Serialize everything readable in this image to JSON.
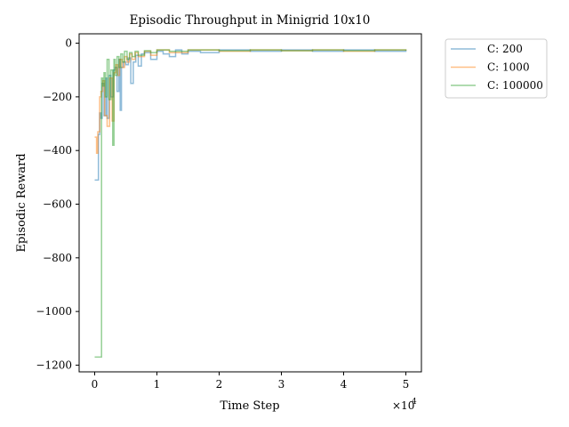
{
  "chart_data": {
    "type": "line",
    "title": "Episodic Throughput in Minigrid 10x10",
    "xlabel": "Time Step",
    "ylabel": "Episodic Reward",
    "x_multiplier_label": "×10",
    "x_multiplier_exp": "4",
    "xlim": [
      -2500,
      52500
    ],
    "ylim": [
      -1225,
      35
    ],
    "xticks": [
      0,
      10000,
      20000,
      30000,
      40000,
      50000
    ],
    "xtick_labels": [
      "0",
      "1",
      "2",
      "3",
      "4",
      "5"
    ],
    "yticks": [
      0,
      -200,
      -400,
      -600,
      -800,
      -1000,
      -1200
    ],
    "ytick_labels": [
      "0",
      "−200",
      "−400",
      "−600",
      "−800",
      "−1000",
      "−1200"
    ],
    "grid": false,
    "legend_position": "outside-top-right",
    "series": [
      {
        "name": "C: 200",
        "color": "#1f77b4",
        "x": [
          0,
          300,
          500,
          600,
          800,
          1000,
          1200,
          1500,
          1800,
          2000,
          2300,
          2600,
          3000,
          3300,
          3600,
          3900,
          4100,
          4300,
          4600,
          5000,
          5400,
          5800,
          6200,
          6600,
          7000,
          7500,
          8000,
          9000,
          10000,
          11000,
          12000,
          13000,
          14000,
          15000,
          17000,
          20000,
          25000,
          30000,
          35000,
          40000,
          45000,
          50000
        ],
        "y": [
          -510,
          -510,
          -510,
          -340,
          -260,
          -280,
          -150,
          -270,
          -130,
          -280,
          -120,
          -200,
          -100,
          -90,
          -180,
          -60,
          -250,
          -90,
          -70,
          -80,
          -55,
          -150,
          -70,
          -45,
          -85,
          -40,
          -35,
          -60,
          -30,
          -40,
          -50,
          -25,
          -40,
          -30,
          -35,
          -25,
          -30,
          -25,
          -30,
          -25,
          -30,
          -25
        ]
      },
      {
        "name": "C: 1000",
        "color": "#ff7f0e",
        "x": [
          0,
          300,
          500,
          800,
          1000,
          1300,
          1600,
          2000,
          2400,
          2800,
          3100,
          3400,
          3700,
          4000,
          4400,
          4800,
          5200,
          5600,
          6000,
          6500,
          7000,
          8000,
          9000,
          10000,
          12000,
          15000,
          20000,
          25000,
          30000,
          35000,
          40000,
          45000,
          50000
        ],
        "y": [
          -350,
          -410,
          -330,
          -200,
          -180,
          -140,
          -270,
          -310,
          -130,
          -290,
          -110,
          -80,
          -120,
          -60,
          -90,
          -50,
          -70,
          -40,
          -60,
          -35,
          -50,
          -30,
          -45,
          -25,
          -35,
          -25,
          -30,
          -25,
          -28,
          -25,
          -30,
          -25,
          -28
        ]
      },
      {
        "name": "C: 100000",
        "color": "#2ca02c",
        "x": [
          0,
          500,
          1000,
          1100,
          1300,
          1500,
          1700,
          2000,
          2300,
          2600,
          2900,
          3100,
          3300,
          3600,
          3900,
          4200,
          4500,
          4800,
          5200,
          5600,
          6000,
          6500,
          7000,
          8000,
          9000,
          10000,
          12000,
          15000,
          20000,
          25000,
          30000,
          35000,
          40000,
          45000,
          50000
        ],
        "y": [
          -1170,
          -1170,
          -1170,
          -130,
          -160,
          -110,
          -200,
          -60,
          -210,
          -100,
          -380,
          -60,
          -120,
          -50,
          -90,
          -40,
          -70,
          -30,
          -60,
          -35,
          -50,
          -30,
          -45,
          -28,
          -35,
          -25,
          -30,
          -25,
          -28,
          -25,
          -28,
          -25,
          -28,
          -25,
          -28
        ]
      }
    ]
  }
}
